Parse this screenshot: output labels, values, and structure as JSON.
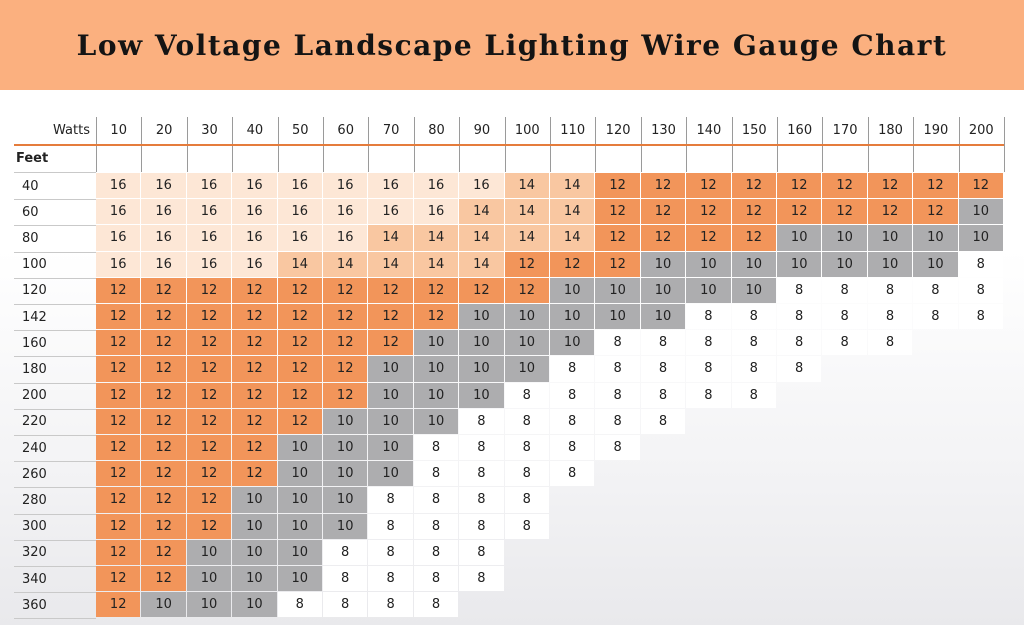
{
  "title": "Low Voltage Landscape Lighting Wire Gauge Chart",
  "colors": {
    "banner": "#fbb07f",
    "g16": "#fde7d6",
    "g14": "#f9c7a1",
    "g12": "#f2955a",
    "g10": "#adadaf",
    "g8": "#ffffff",
    "accent_line": "#e57c3c"
  },
  "chart_data": {
    "type": "table",
    "title": "Low Voltage Landscape Lighting Wire Gauge Chart",
    "corner_label": "Watts",
    "row_header_label": "Feet",
    "columns": [
      "10",
      "20",
      "30",
      "40",
      "50",
      "60",
      "70",
      "80",
      "90",
      "100",
      "110",
      "120",
      "130",
      "140",
      "150",
      "160",
      "170",
      "180",
      "190",
      "200"
    ],
    "rows": [
      {
        "feet": "40",
        "values": [
          16,
          16,
          16,
          16,
          16,
          16,
          16,
          16,
          16,
          14,
          14,
          12,
          12,
          12,
          12,
          12,
          12,
          12,
          12,
          12
        ]
      },
      {
        "feet": "60",
        "values": [
          16,
          16,
          16,
          16,
          16,
          16,
          16,
          16,
          14,
          14,
          14,
          12,
          12,
          12,
          12,
          12,
          12,
          12,
          12,
          10
        ]
      },
      {
        "feet": "80",
        "values": [
          16,
          16,
          16,
          16,
          16,
          16,
          14,
          14,
          14,
          14,
          14,
          12,
          12,
          12,
          12,
          10,
          10,
          10,
          10,
          10
        ]
      },
      {
        "feet": "100",
        "values": [
          16,
          16,
          16,
          16,
          14,
          14,
          14,
          14,
          14,
          12,
          12,
          12,
          10,
          10,
          10,
          10,
          10,
          10,
          10,
          8
        ]
      },
      {
        "feet": "120",
        "values": [
          12,
          12,
          12,
          12,
          12,
          12,
          12,
          12,
          12,
          12,
          10,
          10,
          10,
          10,
          10,
          8,
          8,
          8,
          8,
          8
        ]
      },
      {
        "feet": "142",
        "values": [
          12,
          12,
          12,
          12,
          12,
          12,
          12,
          12,
          10,
          10,
          10,
          10,
          10,
          8,
          8,
          8,
          8,
          8,
          8,
          8
        ]
      },
      {
        "feet": "160",
        "values": [
          12,
          12,
          12,
          12,
          12,
          12,
          12,
          10,
          10,
          10,
          10,
          8,
          8,
          8,
          8,
          8,
          8,
          8
        ]
      },
      {
        "feet": "180",
        "values": [
          12,
          12,
          12,
          12,
          12,
          12,
          10,
          10,
          10,
          10,
          8,
          8,
          8,
          8,
          8,
          8
        ]
      },
      {
        "feet": "200",
        "values": [
          12,
          12,
          12,
          12,
          12,
          12,
          10,
          10,
          10,
          8,
          8,
          8,
          8,
          8,
          8
        ]
      },
      {
        "feet": "220",
        "values": [
          12,
          12,
          12,
          12,
          12,
          10,
          10,
          10,
          8,
          8,
          8,
          8,
          8
        ]
      },
      {
        "feet": "240",
        "values": [
          12,
          12,
          12,
          12,
          10,
          10,
          10,
          8,
          8,
          8,
          8,
          8
        ]
      },
      {
        "feet": "260",
        "values": [
          12,
          12,
          12,
          12,
          10,
          10,
          10,
          8,
          8,
          8,
          8
        ]
      },
      {
        "feet": "280",
        "values": [
          12,
          12,
          12,
          10,
          10,
          10,
          8,
          8,
          8,
          8
        ]
      },
      {
        "feet": "300",
        "values": [
          12,
          12,
          12,
          10,
          10,
          10,
          8,
          8,
          8,
          8
        ]
      },
      {
        "feet": "320",
        "values": [
          12,
          12,
          10,
          10,
          10,
          8,
          8,
          8,
          8
        ]
      },
      {
        "feet": "340",
        "values": [
          12,
          12,
          10,
          10,
          10,
          8,
          8,
          8,
          8
        ]
      },
      {
        "feet": "360",
        "values": [
          12,
          10,
          10,
          10,
          8,
          8,
          8,
          8
        ]
      }
    ]
  }
}
